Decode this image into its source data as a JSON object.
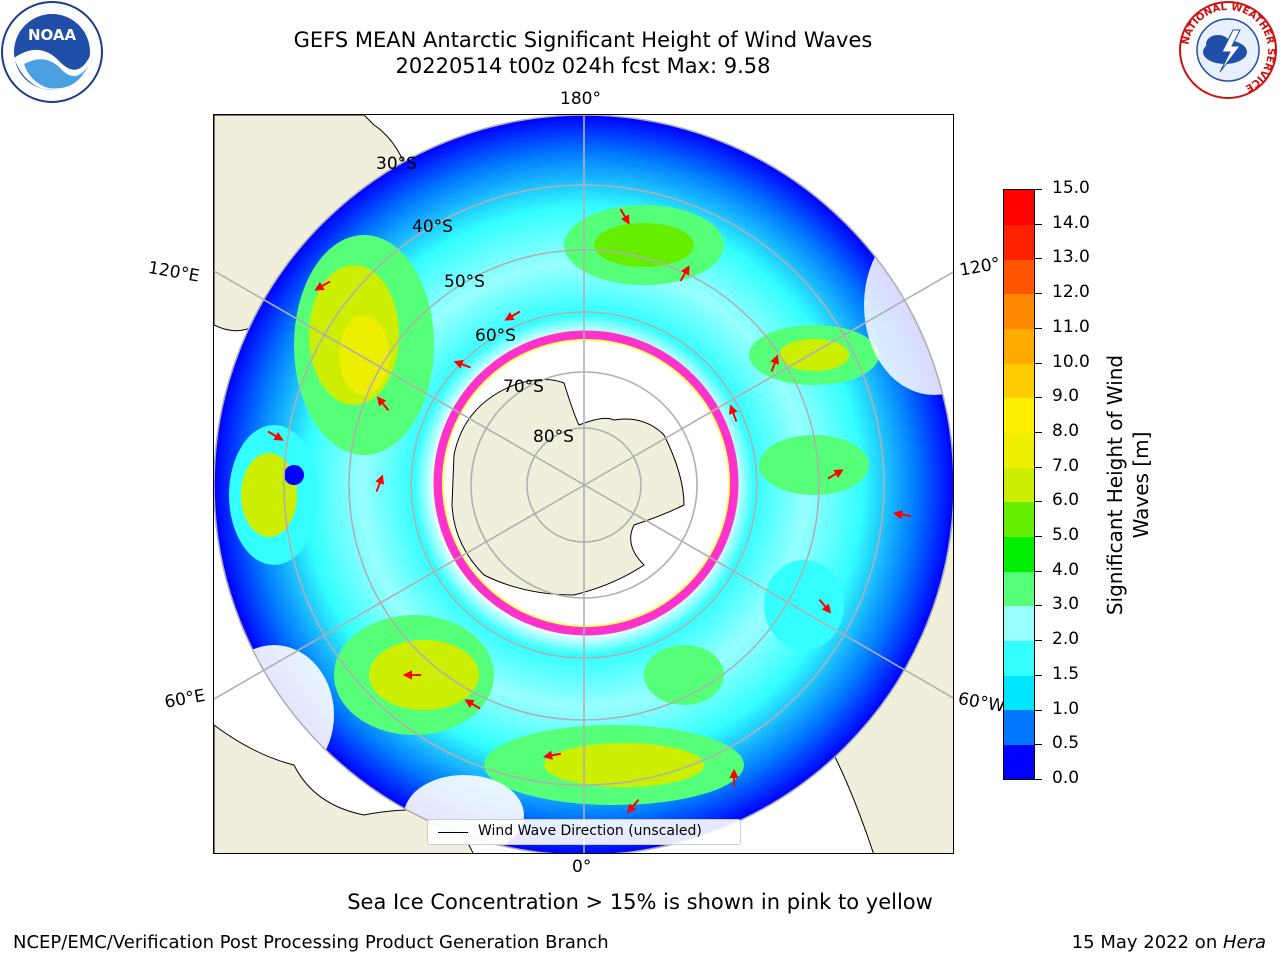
{
  "header": {
    "title_line1": "GEFS MEAN Antarctic Significant Height of Wind Waves",
    "title_line2": "20220514 t00z 024h fcst   Max: 9.58"
  },
  "map": {
    "projection": "south-polar-stereographic",
    "longitude_labels": {
      "top": "180°",
      "bottom": "0°",
      "left_upper": "120°E",
      "left_lower": "60°E",
      "right_upper": "120°",
      "right_lower": "60°W"
    },
    "latitude_labels": [
      "30°S",
      "40°S",
      "50°S",
      "60°S",
      "70°S",
      "80°S"
    ],
    "land_color": "#efefdb",
    "sea_ice_colors": [
      "#ff33cc",
      "#ffff66"
    ],
    "arrow_color": "#ff0000",
    "grid_color": "#b0b0b0"
  },
  "legend": {
    "label": "Wind Wave Direction (unscaled)"
  },
  "colorbar": {
    "title": "Significant Height of Wind Waves [m]",
    "ticks": [
      "0.0",
      "0.5",
      "1.0",
      "1.5",
      "2.0",
      "3.0",
      "4.0",
      "5.0",
      "6.0",
      "7.0",
      "8.0",
      "9.0",
      "10.0",
      "11.0",
      "12.0",
      "13.0",
      "14.0",
      "15.0"
    ],
    "colors": [
      "#0000ff",
      "#0077ff",
      "#00e6ff",
      "#33ffff",
      "#99ffff",
      "#55ff77",
      "#00ee00",
      "#66ee00",
      "#ccee00",
      "#eeee00",
      "#ffee00",
      "#ffcc00",
      "#ffaa00",
      "#ff8800",
      "#ff5500",
      "#ff2200",
      "#ff0000"
    ]
  },
  "footer": {
    "subtitle": "Sea Ice Concentration > 15% is shown in pink to yellow",
    "left": "NCEP/EMC/Verification Post Processing Product Generation Branch",
    "right_prefix": "15 May 2022 on ",
    "right_host": "Hera"
  },
  "logos": {
    "left_text": "NOAA",
    "right_text": "NATIONAL WEATHER SERVICE"
  }
}
